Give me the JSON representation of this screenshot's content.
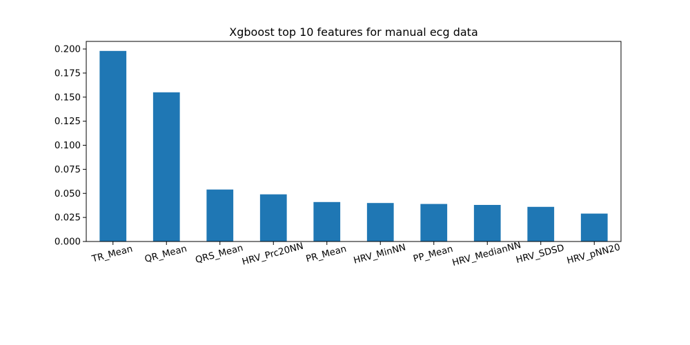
{
  "chart_data": {
    "type": "bar",
    "title": "Xgboost top 10 features for manual ecg data",
    "xlabel": "",
    "ylabel": "",
    "categories": [
      "TR_Mean",
      "QR_Mean",
      "QRS_Mean",
      "HRV_Prc20NN",
      "PR_Mean",
      "HRV_MinNN",
      "PP_Mean",
      "HRV_MedianNN",
      "HRV_SDSD",
      "HRV_pNN20"
    ],
    "values": [
      0.198,
      0.155,
      0.054,
      0.049,
      0.041,
      0.04,
      0.039,
      0.038,
      0.036,
      0.029
    ],
    "ylim": [
      0,
      0.2079
    ],
    "yticks": [
      "0.000",
      "0.025",
      "0.050",
      "0.075",
      "0.100",
      "0.125",
      "0.150",
      "0.175",
      "0.200"
    ],
    "bar_color": "#1f77b4",
    "grid": false,
    "legend": "none"
  }
}
